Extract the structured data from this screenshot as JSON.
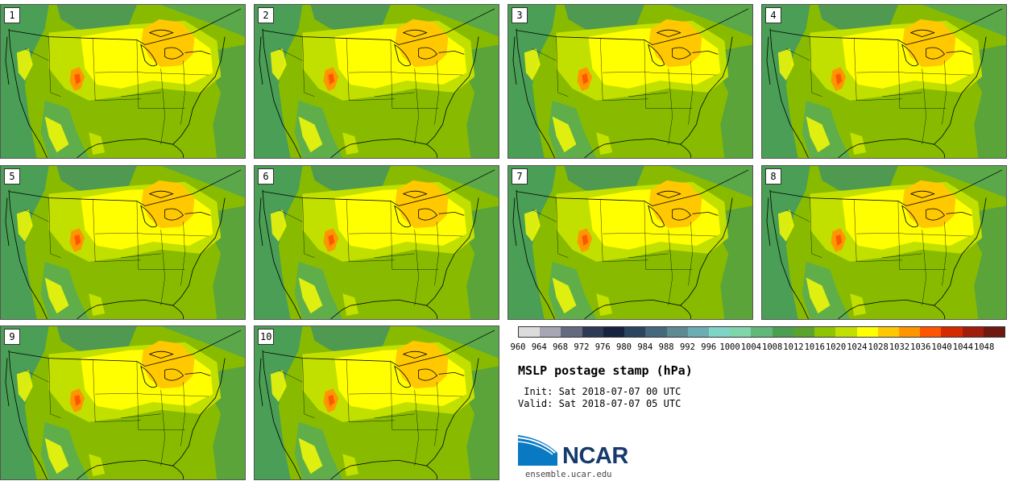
{
  "stamps": [
    {
      "label": "1"
    },
    {
      "label": "2"
    },
    {
      "label": "3"
    },
    {
      "label": "4"
    },
    {
      "label": "5"
    },
    {
      "label": "6"
    },
    {
      "label": "7"
    },
    {
      "label": "8"
    },
    {
      "label": "9"
    },
    {
      "label": "10"
    }
  ],
  "colorbar": {
    "colors": [
      "#dcdcdc",
      "#a6a6b4",
      "#656a80",
      "#2d3a55",
      "#172240",
      "#2b4560",
      "#46687d",
      "#5e8a92",
      "#6aaeb4",
      "#7fd4c8",
      "#7ed6aa",
      "#62b878",
      "#4aa050",
      "#5aa42e",
      "#8fc400",
      "#c2e000",
      "#ffff00",
      "#ffc800",
      "#ff9600",
      "#ff5500",
      "#d42a00",
      "#a01e0a",
      "#6e1a10"
    ],
    "labels": [
      "960",
      "964",
      "968",
      "972",
      "976",
      "980",
      "984",
      "988",
      "992",
      "996",
      "1000",
      "1004",
      "1008",
      "1012",
      "1016",
      "1020",
      "1024",
      "1028",
      "1032",
      "1036",
      "1040",
      "1044",
      "1048"
    ]
  },
  "title": "MSLP postage stamp (hPa)",
  "init": " Init: Sat 2018-07-07 00 UTC",
  "valid": "Valid: Sat 2018-07-07 05 UTC",
  "logo": {
    "text": "NCAR",
    "url": "ensemble.ucar.edu"
  }
}
